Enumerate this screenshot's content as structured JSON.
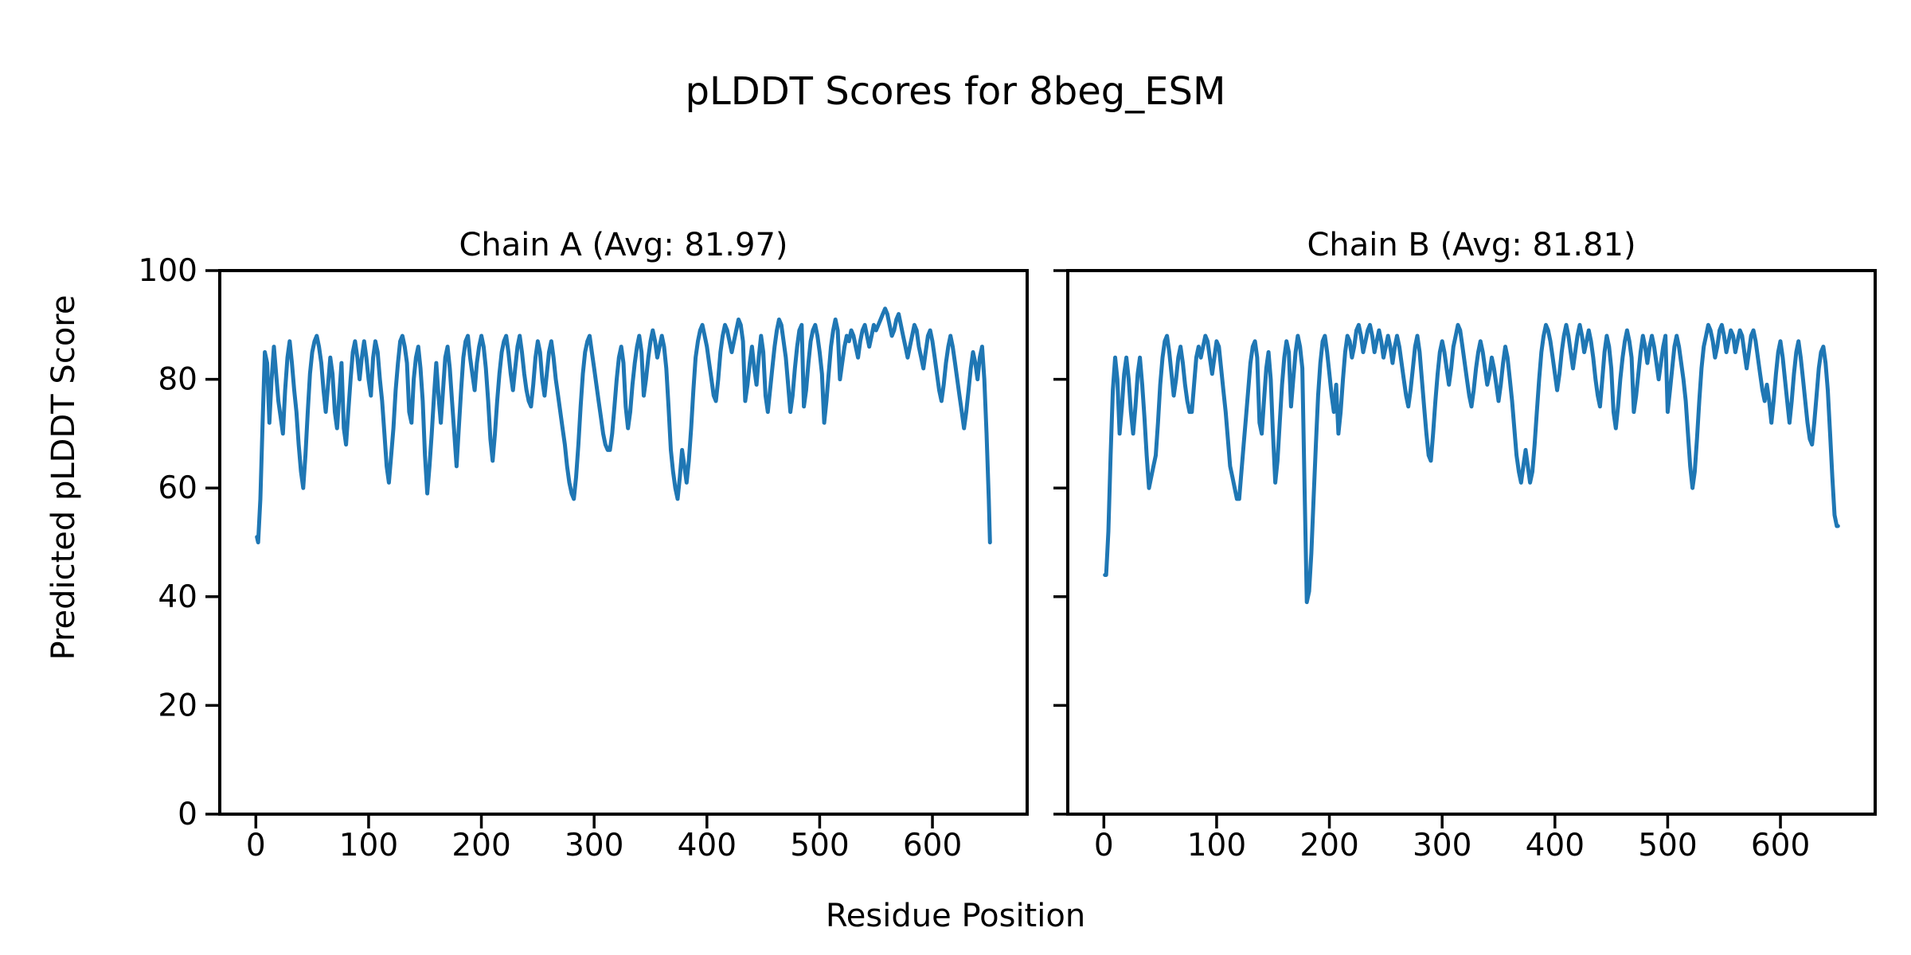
{
  "figure": {
    "suptitle": "pLDDT Scores for 8beg_ESM",
    "xlabel": "Residue Position",
    "ylabel": "Predicted pLDDT Score",
    "background_color": "#ffffff",
    "line_color": "#1f77b4",
    "axis_color": "#000000"
  },
  "chart_data": [
    {
      "type": "line",
      "title": "Chain A (Avg: 81.97)",
      "chain": "A",
      "avg_plddt": 81.97,
      "xlabel": "Residue Position",
      "ylabel": "Predicted pLDDT Score",
      "xlim": [
        -32,
        684
      ],
      "ylim": [
        0,
        100
      ],
      "xticks": [
        0,
        100,
        200,
        300,
        400,
        500,
        600
      ],
      "yticks": [
        0,
        20,
        40,
        60,
        80,
        100
      ],
      "show_y_tick_labels": true,
      "grid": false,
      "line_color": "#1f77b4",
      "x": [
        1,
        2,
        4,
        6,
        8,
        10,
        12,
        14,
        16,
        18,
        20,
        22,
        24,
        26,
        28,
        30,
        32,
        34,
        36,
        38,
        40,
        42,
        44,
        46,
        48,
        50,
        52,
        54,
        56,
        58,
        60,
        62,
        64,
        66,
        68,
        70,
        72,
        74,
        76,
        78,
        80,
        82,
        84,
        86,
        88,
        90,
        92,
        94,
        96,
        98,
        100,
        102,
        104,
        106,
        108,
        110,
        112,
        114,
        116,
        118,
        120,
        122,
        124,
        126,
        128,
        130,
        132,
        134,
        136,
        138,
        140,
        142,
        144,
        146,
        148,
        150,
        152,
        154,
        156,
        158,
        160,
        162,
        164,
        166,
        168,
        170,
        172,
        174,
        176,
        178,
        180,
        182,
        184,
        186,
        188,
        190,
        192,
        194,
        196,
        198,
        200,
        202,
        204,
        206,
        208,
        210,
        212,
        214,
        216,
        218,
        220,
        222,
        224,
        226,
        228,
        230,
        232,
        234,
        236,
        238,
        240,
        242,
        244,
        246,
        248,
        250,
        252,
        254,
        256,
        258,
        260,
        262,
        264,
        266,
        268,
        270,
        272,
        274,
        276,
        278,
        280,
        282,
        284,
        286,
        288,
        290,
        292,
        294,
        296,
        298,
        300,
        302,
        304,
        306,
        308,
        310,
        312,
        314,
        316,
        318,
        320,
        322,
        324,
        326,
        328,
        330,
        332,
        334,
        336,
        338,
        340,
        342,
        344,
        346,
        348,
        350,
        352,
        354,
        356,
        358,
        360,
        362,
        364,
        366,
        368,
        370,
        372,
        374,
        376,
        378,
        380,
        382,
        384,
        386,
        388,
        390,
        392,
        394,
        396,
        398,
        400,
        402,
        404,
        406,
        408,
        410,
        412,
        414,
        416,
        418,
        420,
        422,
        424,
        426,
        428,
        430,
        432,
        434,
        436,
        438,
        440,
        442,
        444,
        446,
        448,
        450,
        452,
        454,
        456,
        458,
        460,
        462,
        464,
        466,
        468,
        470,
        472,
        474,
        476,
        478,
        480,
        482,
        484,
        486,
        488,
        490,
        492,
        494,
        496,
        498,
        500,
        502,
        504,
        506,
        508,
        510,
        512,
        514,
        516,
        518,
        520,
        522,
        524,
        526,
        528,
        530,
        532,
        534,
        536,
        538,
        540,
        542,
        544,
        546,
        548,
        550,
        552,
        554,
        556,
        558,
        560,
        562,
        564,
        566,
        568,
        570,
        572,
        574,
        576,
        578,
        580,
        582,
        584,
        586,
        588,
        590,
        592,
        594,
        596,
        598,
        600,
        602,
        604,
        606,
        608,
        610,
        612,
        614,
        616,
        618,
        620,
        622,
        624,
        626,
        628,
        630,
        632,
        634,
        636,
        638,
        640,
        642,
        644,
        646,
        648,
        650,
        651
      ],
      "y": [
        51,
        50,
        58,
        72,
        85,
        83,
        72,
        80,
        86,
        81,
        76,
        73,
        70,
        78,
        84,
        87,
        83,
        78,
        74,
        68,
        63,
        60,
        66,
        74,
        81,
        85,
        87,
        88,
        86,
        83,
        78,
        74,
        79,
        84,
        81,
        74,
        71,
        77,
        83,
        71,
        68,
        74,
        80,
        85,
        87,
        84,
        80,
        84,
        87,
        84,
        80,
        77,
        84,
        87,
        85,
        80,
        76,
        70,
        64,
        61,
        66,
        71,
        78,
        83,
        87,
        88,
        86,
        83,
        74,
        72,
        80,
        84,
        86,
        82,
        76,
        66,
        59,
        64,
        70,
        77,
        83,
        77,
        72,
        78,
        84,
        86,
        82,
        76,
        70,
        64,
        71,
        78,
        84,
        87,
        88,
        84,
        81,
        78,
        83,
        86,
        88,
        86,
        82,
        76,
        69,
        65,
        70,
        76,
        81,
        85,
        87,
        88,
        85,
        81,
        78,
        82,
        86,
        88,
        85,
        81,
        78,
        76,
        75,
        79,
        84,
        87,
        85,
        80,
        77,
        81,
        85,
        87,
        84,
        80,
        77,
        74,
        71,
        68,
        64,
        61,
        59,
        58,
        62,
        68,
        75,
        81,
        85,
        87,
        88,
        85,
        82,
        79,
        76,
        73,
        70,
        68,
        67,
        67,
        70,
        75,
        80,
        84,
        86,
        83,
        75,
        71,
        74,
        79,
        83,
        86,
        88,
        85,
        77,
        80,
        84,
        87,
        89,
        87,
        84,
        86,
        88,
        86,
        82,
        75,
        67,
        63,
        60,
        58,
        62,
        67,
        64,
        61,
        65,
        71,
        78,
        84,
        87,
        89,
        90,
        88,
        86,
        83,
        80,
        77,
        76,
        80,
        85,
        88,
        90,
        89,
        87,
        85,
        87,
        89,
        91,
        90,
        87,
        76,
        79,
        83,
        86,
        82,
        79,
        84,
        88,
        85,
        77,
        74,
        78,
        82,
        86,
        89,
        91,
        90,
        87,
        84,
        79,
        74,
        77,
        82,
        86,
        89,
        90,
        75,
        78,
        83,
        87,
        89,
        90,
        88,
        85,
        81,
        72,
        76,
        81,
        86,
        89,
        91,
        89,
        80,
        83,
        86,
        88,
        87,
        89,
        88,
        86,
        84,
        87,
        89,
        90,
        88,
        86,
        88,
        90,
        89,
        90,
        91,
        92,
        93,
        92,
        90,
        88,
        89,
        91,
        92,
        90,
        88,
        86,
        84,
        86,
        88,
        90,
        89,
        86,
        84,
        82,
        85,
        88,
        89,
        87,
        84,
        81,
        78,
        76,
        79,
        83,
        86,
        88,
        86,
        83,
        80,
        77,
        74,
        71,
        74,
        78,
        82,
        85,
        83,
        80,
        84,
        86,
        80,
        70,
        58,
        50
      ]
    },
    {
      "type": "line",
      "title": "Chain B (Avg: 81.81)",
      "chain": "B",
      "avg_plddt": 81.81,
      "xlabel": "Residue Position",
      "ylabel": "Predicted pLDDT Score",
      "xlim": [
        -32,
        684
      ],
      "ylim": [
        0,
        100
      ],
      "xticks": [
        0,
        100,
        200,
        300,
        400,
        500,
        600
      ],
      "yticks": [
        0,
        20,
        40,
        60,
        80,
        100
      ],
      "show_y_tick_labels": false,
      "grid": false,
      "line_color": "#1f77b4",
      "x": [
        1,
        2,
        4,
        6,
        8,
        10,
        12,
        14,
        16,
        18,
        20,
        22,
        24,
        26,
        28,
        30,
        32,
        34,
        36,
        38,
        40,
        42,
        44,
        46,
        48,
        50,
        52,
        54,
        56,
        58,
        60,
        62,
        64,
        66,
        68,
        70,
        72,
        74,
        76,
        78,
        80,
        82,
        84,
        86,
        88,
        90,
        92,
        94,
        96,
        98,
        100,
        102,
        104,
        106,
        108,
        110,
        112,
        114,
        116,
        118,
        120,
        122,
        124,
        126,
        128,
        130,
        132,
        134,
        136,
        138,
        140,
        142,
        144,
        146,
        148,
        150,
        152,
        154,
        156,
        158,
        160,
        162,
        164,
        166,
        168,
        170,
        172,
        174,
        176,
        178,
        180,
        182,
        184,
        186,
        188,
        190,
        192,
        194,
        196,
        198,
        200,
        202,
        204,
        206,
        208,
        210,
        212,
        214,
        216,
        218,
        220,
        222,
        224,
        226,
        228,
        230,
        232,
        234,
        236,
        238,
        240,
        242,
        244,
        246,
        248,
        250,
        252,
        254,
        256,
        258,
        260,
        262,
        264,
        266,
        268,
        270,
        272,
        274,
        276,
        278,
        280,
        282,
        284,
        286,
        288,
        290,
        292,
        294,
        296,
        298,
        300,
        302,
        304,
        306,
        308,
        310,
        312,
        314,
        316,
        318,
        320,
        322,
        324,
        326,
        328,
        330,
        332,
        334,
        336,
        338,
        340,
        342,
        344,
        346,
        348,
        350,
        352,
        354,
        356,
        358,
        360,
        362,
        364,
        366,
        368,
        370,
        372,
        374,
        376,
        378,
        380,
        382,
        384,
        386,
        388,
        390,
        392,
        394,
        396,
        398,
        400,
        402,
        404,
        406,
        408,
        410,
        412,
        414,
        416,
        418,
        420,
        422,
        424,
        426,
        428,
        430,
        432,
        434,
        436,
        438,
        440,
        442,
        444,
        446,
        448,
        450,
        452,
        454,
        456,
        458,
        460,
        462,
        464,
        466,
        468,
        470,
        472,
        474,
        476,
        478,
        480,
        482,
        484,
        486,
        488,
        490,
        492,
        494,
        496,
        498,
        500,
        502,
        504,
        506,
        508,
        510,
        512,
        514,
        516,
        518,
        520,
        522,
        524,
        526,
        528,
        530,
        532,
        534,
        536,
        538,
        540,
        542,
        544,
        546,
        548,
        550,
        552,
        554,
        556,
        558,
        560,
        562,
        564,
        566,
        568,
        570,
        572,
        574,
        576,
        578,
        580,
        582,
        584,
        586,
        588,
        590,
        592,
        594,
        596,
        598,
        600,
        602,
        604,
        606,
        608,
        610,
        612,
        614,
        616,
        618,
        620,
        622,
        624,
        626,
        628,
        630,
        632,
        634,
        636,
        638,
        640,
        642,
        644,
        646,
        648,
        650,
        651
      ],
      "y": [
        44,
        44,
        52,
        66,
        78,
        84,
        80,
        70,
        75,
        81,
        84,
        80,
        74,
        70,
        75,
        81,
        84,
        79,
        73,
        66,
        60,
        62,
        64,
        66,
        72,
        79,
        84,
        87,
        88,
        85,
        81,
        77,
        80,
        84,
        86,
        83,
        79,
        76,
        74,
        74,
        79,
        84,
        86,
        84,
        86,
        88,
        87,
        84,
        81,
        84,
        87,
        86,
        82,
        78,
        74,
        69,
        64,
        62,
        60,
        58,
        58,
        63,
        68,
        73,
        78,
        83,
        86,
        87,
        84,
        72,
        70,
        76,
        82,
        85,
        80,
        70,
        61,
        65,
        72,
        79,
        84,
        87,
        85,
        75,
        80,
        85,
        88,
        86,
        82,
        60,
        39,
        41,
        48,
        58,
        68,
        77,
        83,
        87,
        88,
        85,
        81,
        77,
        74,
        79,
        70,
        74,
        80,
        85,
        88,
        87,
        84,
        86,
        89,
        90,
        88,
        85,
        87,
        89,
        90,
        88,
        85,
        87,
        89,
        87,
        84,
        86,
        88,
        86,
        83,
        86,
        88,
        86,
        83,
        80,
        77,
        75,
        78,
        82,
        86,
        88,
        85,
        80,
        75,
        70,
        66,
        65,
        70,
        76,
        81,
        85,
        87,
        85,
        82,
        79,
        82,
        86,
        88,
        90,
        89,
        86,
        83,
        80,
        77,
        75,
        78,
        82,
        85,
        87,
        85,
        82,
        79,
        81,
        84,
        82,
        79,
        76,
        79,
        83,
        86,
        84,
        80,
        76,
        71,
        66,
        63,
        61,
        64,
        67,
        64,
        61,
        63,
        68,
        74,
        80,
        85,
        88,
        90,
        89,
        87,
        84,
        81,
        78,
        81,
        85,
        88,
        90,
        88,
        85,
        82,
        85,
        88,
        90,
        88,
        85,
        87,
        89,
        87,
        84,
        80,
        77,
        75,
        80,
        85,
        88,
        86,
        82,
        74,
        71,
        75,
        80,
        84,
        87,
        89,
        87,
        84,
        74,
        77,
        81,
        85,
        88,
        86,
        83,
        86,
        88,
        86,
        83,
        80,
        83,
        86,
        88,
        74,
        78,
        82,
        86,
        88,
        86,
        83,
        80,
        76,
        70,
        64,
        60,
        63,
        69,
        76,
        82,
        86,
        88,
        90,
        89,
        87,
        84,
        86,
        89,
        90,
        88,
        85,
        87,
        89,
        88,
        85,
        87,
        89,
        88,
        85,
        82,
        85,
        88,
        89,
        87,
        84,
        81,
        78,
        76,
        79,
        76,
        72,
        76,
        81,
        85,
        87,
        84,
        80,
        76,
        72,
        76,
        81,
        85,
        87,
        84,
        80,
        76,
        72,
        69,
        68,
        72,
        77,
        82,
        85,
        86,
        83,
        78,
        70,
        62,
        55,
        53,
        53
      ]
    }
  ]
}
